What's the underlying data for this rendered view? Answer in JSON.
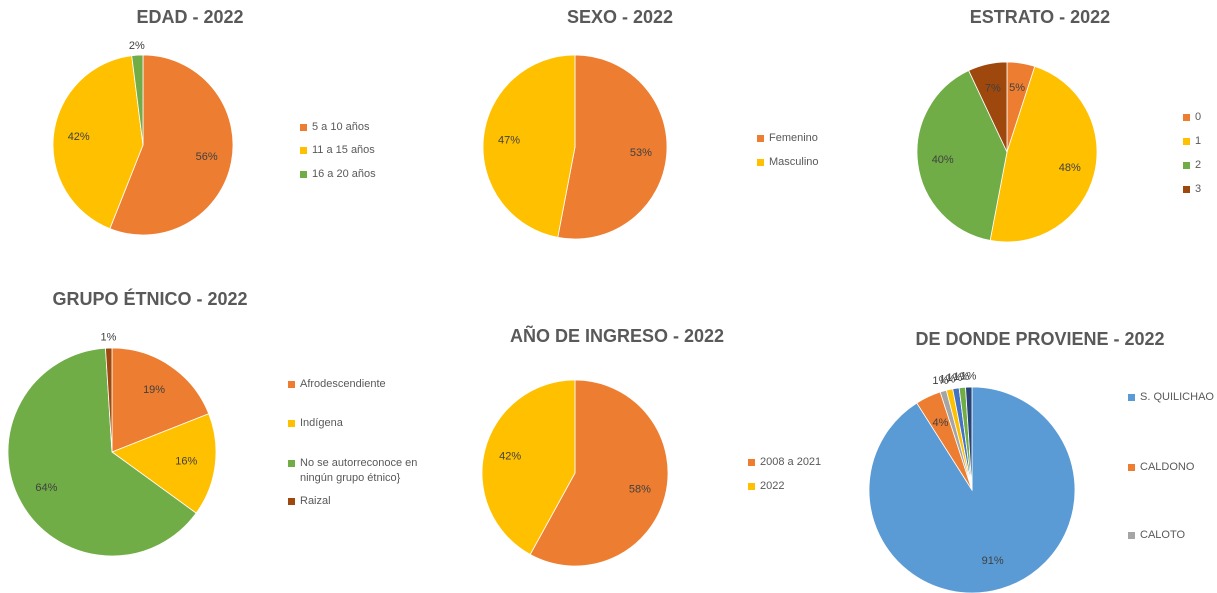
{
  "chart_data": [
    {
      "type": "pie",
      "title": "EDAD - 2022",
      "categories": [
        "5 a 10 años",
        "11 a 15 años",
        "16 a 20 años"
      ],
      "values": [
        56,
        42,
        2
      ],
      "value_labels": [
        "56%",
        "42%",
        "2%"
      ],
      "colors": [
        "#ED7D31",
        "#FFC000",
        "#70AD47"
      ]
    },
    {
      "type": "pie",
      "title": "SEXO - 2022",
      "categories": [
        "Femenino",
        "Masculino"
      ],
      "values": [
        53,
        47
      ],
      "value_labels": [
        "53%",
        "47%"
      ],
      "colors": [
        "#ED7D31",
        "#FFC000"
      ]
    },
    {
      "type": "pie",
      "title": "ESTRATO - 2022",
      "categories": [
        "0",
        "1",
        "2",
        "3"
      ],
      "values": [
        5,
        48,
        40,
        7
      ],
      "value_labels": [
        "5%",
        "48%",
        "40%",
        "7%"
      ],
      "colors": [
        "#ED7D31",
        "#FFC000",
        "#70AD47",
        "#9E480E"
      ]
    },
    {
      "type": "pie",
      "title": "GRUPO ÉTNICO - 2022",
      "categories": [
        "Afrodescendiente",
        "Indígena",
        "No se autorreconoce en ningún grupo étnico}",
        "Raizal"
      ],
      "values": [
        19,
        16,
        64,
        1
      ],
      "value_labels": [
        "19%",
        "16%",
        "64%",
        "1%"
      ],
      "colors": [
        "#ED7D31",
        "#FFC000",
        "#70AD47",
        "#9E480E"
      ]
    },
    {
      "type": "pie",
      "title": "AÑO DE INGRESO - 2022",
      "categories": [
        "2008 a 2021",
        "2022"
      ],
      "values": [
        58,
        42
      ],
      "value_labels": [
        "58%",
        "42%"
      ],
      "colors": [
        "#ED7D31",
        "#FFC000"
      ]
    },
    {
      "type": "pie",
      "title": "DE DONDE PROVIENE - 2022",
      "categories": [
        "S. QUILICHAO",
        "CALDONO",
        "CALOTO",
        null,
        null,
        null,
        null
      ],
      "values": [
        91,
        4,
        1,
        1,
        1,
        1,
        1
      ],
      "value_labels": [
        "91%",
        "4%",
        "1%",
        "1%",
        "1%",
        "1%",
        "1%"
      ],
      "colors": [
        "#5B9BD5",
        "#ED7D31",
        "#A5A5A5",
        "#FFC000",
        "#4472C4",
        "#70AD47",
        "#264478"
      ]
    }
  ]
}
